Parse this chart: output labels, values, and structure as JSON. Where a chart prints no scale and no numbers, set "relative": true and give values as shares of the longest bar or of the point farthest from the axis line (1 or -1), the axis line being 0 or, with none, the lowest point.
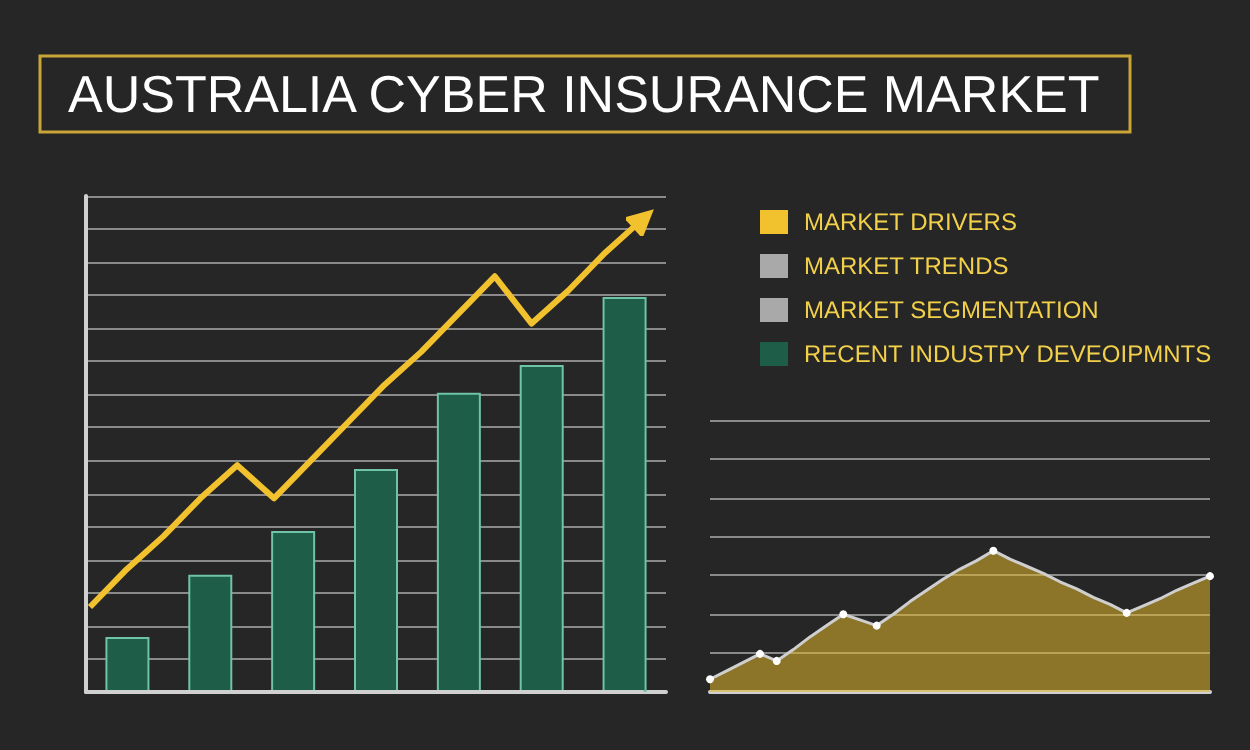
{
  "chart_data": [
    {
      "type": "bar",
      "title": "AUSTRALIA CYBER INSURANCE MARKET",
      "relative": true,
      "grid": "y",
      "color": "#1e5e48",
      "categories": [
        null,
        null,
        null,
        null,
        null,
        null,
        null
      ],
      "values": [
        0.139,
        0.297,
        0.408,
        0.565,
        0.758,
        0.828,
        1
      ]
    },
    {
      "type": "line",
      "relative": true,
      "color": "#f2c12e",
      "categories": [
        null,
        null,
        null,
        null,
        null,
        null,
        null,
        null,
        null,
        null,
        null,
        null,
        null,
        null,
        null,
        null
      ],
      "values": [
        0.18,
        0.26,
        0.33,
        0.41,
        0.48,
        0.41,
        0.49,
        0.57,
        0.65,
        0.72,
        0.8,
        0.88,
        0.78,
        0.85,
        0.93,
        1
      ]
    },
    {
      "type": "area",
      "relative": true,
      "grid": "y",
      "color": "#e0b62a",
      "categories": [
        null,
        null,
        null,
        null,
        null,
        null,
        null,
        null,
        null,
        null,
        null,
        null,
        null,
        null,
        null,
        null,
        null,
        null,
        null,
        null,
        null,
        null,
        null,
        null,
        null,
        null,
        null,
        null,
        null,
        null,
        null
      ],
      "values": [
        0.09,
        0.15,
        0.21,
        0.27,
        0.22,
        0.3,
        0.39,
        0.47,
        0.55,
        0.51,
        0.47,
        0.55,
        0.64,
        0.72,
        0.8,
        0.87,
        0.93,
        1,
        0.94,
        0.89,
        0.84,
        0.78,
        0.73,
        0.67,
        0.62,
        0.56,
        0.61,
        0.66,
        0.72,
        0.77,
        0.82
      ]
    },
    {
      "type": "other",
      "annotations": [
        "MARKET DRIVERS",
        "MARKET TRENDS",
        "MARKET SEGMENTATION",
        "RECENT INDUSTPY DEVEOIPMNTS"
      ]
    }
  ]
}
